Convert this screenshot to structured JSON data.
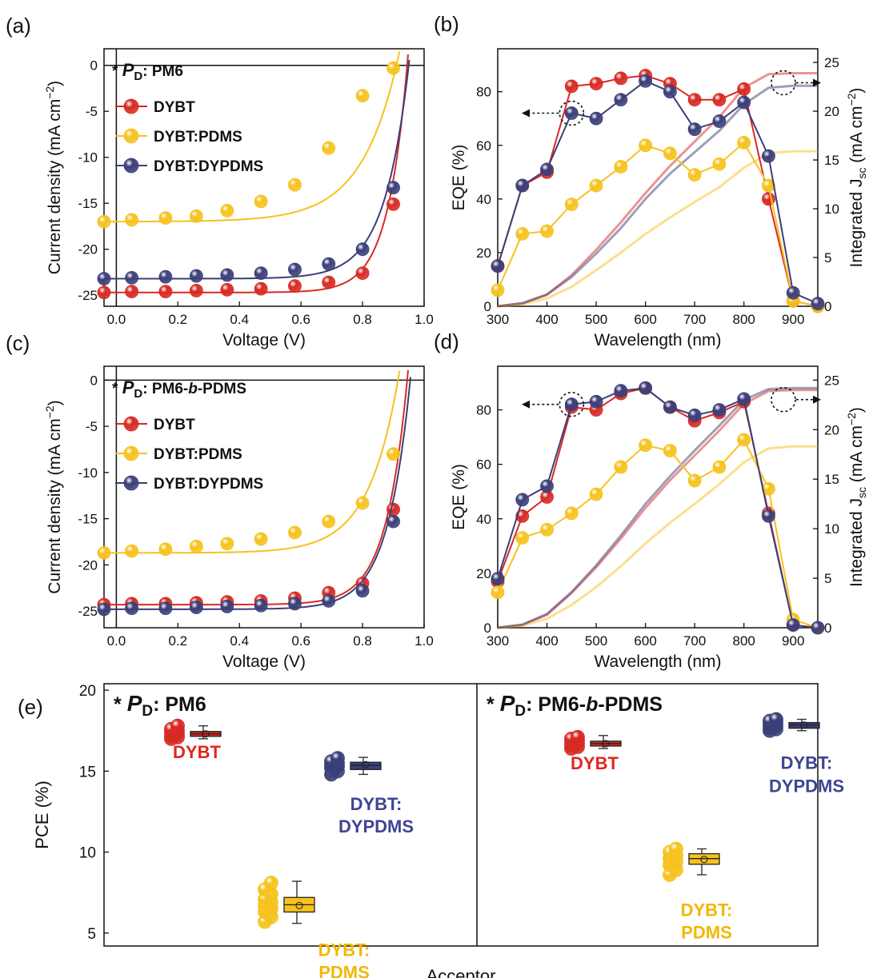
{
  "panel_labels": [
    "(a)",
    "(b)",
    "(c)",
    "(d)",
    "(e)"
  ],
  "colors": {
    "red": "#d72a23",
    "yellow": "#f6c21d",
    "navy": "#3b3f78",
    "red_text": "#e0271f",
    "yellow_text": "#f2b705",
    "navy_text": "#3e4493"
  },
  "chart_data": [
    {
      "panel": "(a)",
      "type": "line",
      "annotation_prefix": "* ",
      "annotation_p": "P",
      "annotation_sub": "D",
      "annotation_rest": ": PM6",
      "annotation_italic": "",
      "xlabel": "Voltage (V)",
      "ylabel": "Current density (mA cm−2)",
      "xlim": [
        -0.04,
        1.0
      ],
      "ylim": [
        -26.2,
        1.8
      ],
      "xticks": [
        0.0,
        0.2,
        0.4,
        0.6,
        0.8,
        1.0
      ],
      "xtick_labels": [
        "0.0",
        "0.2",
        "0.4",
        "0.6",
        "0.8",
        "1.0"
      ],
      "yticks": [
        0,
        -5,
        -10,
        -15,
        -20,
        -25
      ],
      "ytick_labels": [
        "0",
        "-5",
        "-10",
        "-15",
        "-20",
        "-25"
      ],
      "series": [
        {
          "name": "DYBT",
          "color": "red",
          "jsc": -24.7,
          "voc": 0.945,
          "n": 1.25,
          "x": [
            -0.04,
            0.05,
            0.16,
            0.26,
            0.36,
            0.47,
            0.58,
            0.69,
            0.8,
            0.9
          ],
          "y": [
            -24.7,
            -24.6,
            -24.6,
            -24.5,
            -24.4,
            -24.3,
            -24.0,
            -23.6,
            -22.6,
            -15.1
          ]
        },
        {
          "name": "DYBT:PDMS",
          "color": "yellow",
          "jsc": -17.0,
          "voc": 0.91,
          "n": 2.3,
          "x": [
            -0.04,
            0.05,
            0.16,
            0.26,
            0.36,
            0.47,
            0.58,
            0.69,
            0.8,
            0.9
          ],
          "y": [
            -17.0,
            -16.8,
            -16.6,
            -16.4,
            -15.8,
            -14.8,
            -13.0,
            -9.0,
            -3.3,
            -0.3
          ]
        },
        {
          "name": "DYBT:DYPDMS",
          "color": "navy",
          "jsc": -23.2,
          "voc": 0.95,
          "n": 1.55,
          "x": [
            -0.04,
            0.05,
            0.16,
            0.26,
            0.36,
            0.47,
            0.58,
            0.69,
            0.8,
            0.9
          ],
          "y": [
            -23.2,
            -23.1,
            -23.0,
            -22.9,
            -22.8,
            -22.6,
            -22.2,
            -21.6,
            -20.0,
            -13.3
          ]
        }
      ]
    },
    {
      "panel": "(b)",
      "type": "line",
      "xlabel": "Wavelength (nm)",
      "ylabel": "EQE (%)",
      "y2label_main": "Integrated J",
      "y2label_sub": "sc",
      "y2label_unit": " (mA cm−2)",
      "xlim": [
        300,
        950
      ],
      "ylim": [
        0,
        96
      ],
      "y2lim": [
        0,
        26.4
      ],
      "xticks": [
        300,
        400,
        500,
        600,
        700,
        800,
        900
      ],
      "xtick_labels": [
        "300",
        "400",
        "500",
        "600",
        "700",
        "800",
        "900"
      ],
      "yticks": [
        0,
        20,
        40,
        60,
        80
      ],
      "ytick_labels": [
        "0",
        "20",
        "40",
        "60",
        "80"
      ],
      "y2ticks": [
        0,
        5,
        10,
        15,
        20,
        25
      ],
      "y2tick_labels": [
        "0",
        "5",
        "10",
        "15",
        "20",
        "25"
      ],
      "eqe_series": [
        {
          "name": "DYBT",
          "color": "red",
          "x": [
            300,
            350,
            400,
            450,
            500,
            550,
            600,
            650,
            700,
            750,
            800,
            850,
            900,
            950
          ],
          "y": [
            15,
            45,
            50,
            82,
            83,
            85,
            86,
            83,
            77,
            77,
            81,
            40,
            2,
            0
          ]
        },
        {
          "name": "DYBT:PDMS",
          "color": "yellow",
          "x": [
            300,
            350,
            400,
            450,
            500,
            550,
            600,
            650,
            700,
            750,
            800,
            850,
            900,
            950
          ],
          "y": [
            6,
            27,
            28,
            38,
            45,
            52,
            60,
            57,
            49,
            53,
            61,
            45,
            2,
            0
          ]
        },
        {
          "name": "DYBT:DYPDMS",
          "color": "navy",
          "x": [
            300,
            350,
            400,
            450,
            500,
            550,
            600,
            650,
            700,
            750,
            800,
            850,
            900,
            950
          ],
          "y": [
            15,
            45,
            51,
            72,
            70,
            77,
            84,
            80,
            66,
            69,
            76,
            56,
            5,
            1
          ]
        }
      ],
      "integrated_series": [
        {
          "name": "DYBT",
          "color": "red",
          "x": [
            300,
            350,
            400,
            450,
            500,
            550,
            600,
            650,
            700,
            750,
            800,
            850,
            900,
            950
          ],
          "y": [
            0,
            0.3,
            1.2,
            3.2,
            5.8,
            8.6,
            11.6,
            14.4,
            16.9,
            19.4,
            22.4,
            23.8,
            23.9,
            23.9
          ]
        },
        {
          "name": "DYBT:PDMS",
          "color": "yellow",
          "x": [
            300,
            350,
            400,
            450,
            500,
            550,
            600,
            650,
            700,
            750,
            800,
            850,
            900,
            950
          ],
          "y": [
            0,
            0.2,
            0.8,
            2.0,
            3.7,
            5.5,
            7.4,
            9.1,
            10.7,
            12.2,
            14.2,
            15.7,
            15.9,
            15.9
          ]
        },
        {
          "name": "DYBT:DYPDMS",
          "color": "navy",
          "x": [
            300,
            350,
            400,
            450,
            500,
            550,
            600,
            650,
            700,
            750,
            800,
            850,
            900,
            950
          ],
          "y": [
            0,
            0.3,
            1.2,
            3.0,
            5.4,
            8.0,
            11.0,
            13.6,
            15.8,
            18.0,
            20.7,
            22.4,
            22.6,
            22.6
          ]
        }
      ]
    },
    {
      "panel": "(c)",
      "type": "line",
      "annotation_prefix": "* ",
      "annotation_p": "P",
      "annotation_sub": "D",
      "annotation_rest": ": PM6-",
      "annotation_italic": "b",
      "annotation_tail": "-PDMS",
      "xlabel": "Voltage (V)",
      "ylabel": "Current density (mA cm−2)",
      "xlim": [
        -0.04,
        1.0
      ],
      "ylim": [
        -26.8,
        1.5
      ],
      "xticks": [
        0.0,
        0.2,
        0.4,
        0.6,
        0.8,
        1.0
      ],
      "xtick_labels": [
        "0.0",
        "0.2",
        "0.4",
        "0.6",
        "0.8",
        "1.0"
      ],
      "yticks": [
        0,
        -5,
        -10,
        -15,
        -20,
        -25
      ],
      "ytick_labels": [
        "0",
        "-5",
        "-10",
        "-15",
        "-20",
        "-25"
      ],
      "series": [
        {
          "name": "DYBT",
          "color": "red",
          "jsc": -24.3,
          "voc": 0.945,
          "n": 1.35,
          "x": [
            -0.04,
            0.05,
            0.16,
            0.26,
            0.36,
            0.47,
            0.58,
            0.69,
            0.8,
            0.9
          ],
          "y": [
            -24.3,
            -24.2,
            -24.2,
            -24.1,
            -24.0,
            -23.9,
            -23.6,
            -23.0,
            -22.0,
            -14.0
          ]
        },
        {
          "name": "DYBT:PDMS",
          "color": "yellow",
          "jsc": -18.7,
          "voc": 0.915,
          "n": 1.9,
          "x": [
            -0.04,
            0.05,
            0.16,
            0.26,
            0.36,
            0.47,
            0.58,
            0.69,
            0.8,
            0.9
          ],
          "y": [
            -18.7,
            -18.5,
            -18.3,
            -18.0,
            -17.7,
            -17.2,
            -16.5,
            -15.3,
            -13.3,
            -8.0
          ]
        },
        {
          "name": "DYBT:DYPDMS",
          "color": "navy",
          "jsc": -24.8,
          "voc": 0.955,
          "n": 1.45,
          "x": [
            -0.04,
            0.05,
            0.16,
            0.26,
            0.36,
            0.47,
            0.58,
            0.69,
            0.8,
            0.9
          ],
          "y": [
            -24.8,
            -24.7,
            -24.7,
            -24.6,
            -24.5,
            -24.4,
            -24.2,
            -23.9,
            -22.8,
            -15.3
          ]
        }
      ]
    },
    {
      "panel": "(d)",
      "type": "line",
      "xlabel": "Wavelength (nm)",
      "ylabel": "EQE (%)",
      "y2label_main": "Integrated J",
      "y2label_sub": "sc",
      "y2label_unit": " (mA cm−2)",
      "xlim": [
        300,
        950
      ],
      "ylim": [
        0,
        96
      ],
      "y2lim": [
        0,
        26.4
      ],
      "xticks": [
        300,
        400,
        500,
        600,
        700,
        800,
        900
      ],
      "xtick_labels": [
        "300",
        "400",
        "500",
        "600",
        "700",
        "800",
        "900"
      ],
      "yticks": [
        0,
        20,
        40,
        60,
        80
      ],
      "ytick_labels": [
        "0",
        "20",
        "40",
        "60",
        "80"
      ],
      "y2ticks": [
        0,
        5,
        10,
        15,
        20,
        25
      ],
      "y2tick_labels": [
        "0",
        "5",
        "10",
        "15",
        "20",
        "25"
      ],
      "eqe_series": [
        {
          "name": "DYBT",
          "color": "red",
          "x": [
            300,
            350,
            400,
            450,
            500,
            550,
            600,
            650,
            700,
            750,
            800,
            850,
            900,
            950
          ],
          "y": [
            17,
            41,
            48,
            81,
            80,
            86,
            88,
            81,
            76,
            79,
            83,
            42,
            1,
            0
          ]
        },
        {
          "name": "DYBT:PDMS",
          "color": "yellow",
          "x": [
            300,
            350,
            400,
            450,
            500,
            550,
            600,
            650,
            700,
            750,
            800,
            850,
            900,
            950
          ],
          "y": [
            13,
            33,
            36,
            42,
            49,
            59,
            67,
            65,
            54,
            59,
            69,
            51,
            3,
            0
          ]
        },
        {
          "name": "DYBT:DYPDMS",
          "color": "navy",
          "x": [
            300,
            350,
            400,
            450,
            500,
            550,
            600,
            650,
            700,
            750,
            800,
            850,
            900,
            950
          ],
          "y": [
            18,
            47,
            52,
            82,
            83,
            87,
            88,
            81,
            78,
            80,
            84,
            41,
            1,
            0
          ]
        }
      ],
      "integrated_series": [
        {
          "name": "DYBT",
          "color": "red",
          "x": [
            300,
            350,
            400,
            450,
            500,
            550,
            600,
            650,
            700,
            750,
            800,
            850,
            900,
            950
          ],
          "y": [
            0,
            0.3,
            1.3,
            3.5,
            6.1,
            9.0,
            12.1,
            14.9,
            17.4,
            19.9,
            22.6,
            23.9,
            24.0,
            24.0
          ]
        },
        {
          "name": "DYBT:PDMS",
          "color": "yellow",
          "x": [
            300,
            350,
            400,
            450,
            500,
            550,
            600,
            650,
            700,
            750,
            800,
            850,
            900,
            950
          ],
          "y": [
            0,
            0.2,
            0.9,
            2.3,
            4.1,
            6.2,
            8.5,
            10.6,
            12.5,
            14.5,
            16.7,
            18.1,
            18.3,
            18.3
          ]
        },
        {
          "name": "DYBT:DYPDMS",
          "color": "navy",
          "x": [
            300,
            350,
            400,
            450,
            500,
            550,
            600,
            650,
            700,
            750,
            800,
            850,
            900,
            950
          ],
          "y": [
            0,
            0.3,
            1.4,
            3.6,
            6.3,
            9.3,
            12.5,
            15.3,
            17.9,
            20.4,
            23.0,
            24.1,
            24.2,
            24.2
          ]
        }
      ]
    },
    {
      "panel": "(e)",
      "type": "box",
      "xlabel": "Acceptor",
      "ylabel": "PCE (%)",
      "ylim": [
        4.2,
        20.4
      ],
      "yticks": [
        5,
        10,
        15,
        20
      ],
      "ytick_labels": [
        "5",
        "10",
        "15",
        "20"
      ],
      "groups": [
        {
          "title_prefix": "* ",
          "title_p": "P",
          "title_sub": "D",
          "title_rest": ": PM6",
          "title_italic": "",
          "title_tail": "",
          "boxes": [
            {
              "label_lines": [
                "DYBT"
              ],
              "color": "red",
              "min": 17.0,
              "q1": 17.15,
              "median": 17.3,
              "mean": 17.3,
              "q3": 17.45,
              "max": 17.8,
              "points": [
                17.0,
                17.1,
                17.2,
                17.3,
                17.4,
                17.5,
                17.6,
                17.8
              ]
            },
            {
              "label_lines": [
                "DYBT:",
                "DYPDMS"
              ],
              "color": "navy",
              "min": 14.8,
              "q1": 15.1,
              "median": 15.35,
              "mean": 15.4,
              "q3": 15.55,
              "max": 15.85,
              "points": [
                14.8,
                15.0,
                15.2,
                15.3,
                15.4,
                15.5,
                15.6,
                15.8
              ]
            },
            {
              "label_lines": [
                "DYBT:",
                "PDMS"
              ],
              "color": "yellow",
              "min": 5.6,
              "q1": 6.3,
              "median": 6.75,
              "mean": 6.7,
              "q3": 7.2,
              "max": 8.2,
              "points": [
                5.7,
                6.0,
                6.3,
                6.5,
                6.7,
                6.9,
                7.1,
                7.4,
                7.7,
                8.1
              ]
            }
          ]
        },
        {
          "title_prefix": "* ",
          "title_p": "P",
          "title_sub": "D",
          "title_rest": ": PM6-",
          "title_italic": "b",
          "title_tail": "-PDMS",
          "boxes": [
            {
              "label_lines": [
                "DYBT"
              ],
              "color": "red",
              "min": 16.4,
              "q1": 16.55,
              "median": 16.7,
              "mean": 16.7,
              "q3": 16.85,
              "max": 17.2,
              "points": [
                16.4,
                16.5,
                16.6,
                16.7,
                16.8,
                16.9,
                17.0,
                17.1
              ]
            },
            {
              "label_lines": [
                "DYBT:",
                "PDMS"
              ],
              "color": "yellow",
              "min": 8.6,
              "q1": 9.25,
              "median": 9.6,
              "mean": 9.55,
              "q3": 9.9,
              "max": 10.2,
              "points": [
                8.6,
                8.9,
                9.2,
                9.4,
                9.6,
                9.8,
                10.0,
                10.2
              ]
            },
            {
              "label_lines": [
                "DYBT:",
                "DYPDMS"
              ],
              "color": "navy",
              "min": 17.5,
              "q1": 17.65,
              "median": 17.85,
              "mean": 17.85,
              "q3": 18.0,
              "max": 18.2,
              "points": [
                17.5,
                17.6,
                17.7,
                17.8,
                17.9,
                18.0,
                18.1,
                18.2
              ]
            }
          ]
        }
      ]
    }
  ]
}
